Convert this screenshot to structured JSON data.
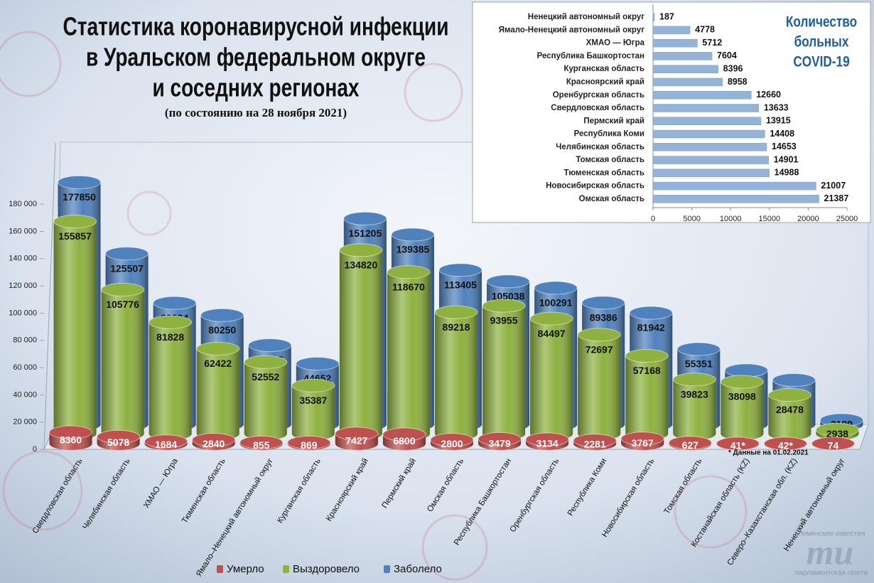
{
  "chart_data": [
    {
      "type": "bar",
      "style": "3d-cylinder",
      "title": [
        "Статистика коронавирусной инфекции",
        "в Уральском федеральном округе",
        "и соседних регионах"
      ],
      "subtitle": "(по состоянию на 28 ноября 2021)",
      "categories": [
        "Свердловская область",
        "Челябинская область",
        "ХМАО — Югра",
        "Тюменская область",
        "Ямало–Ненецкий автономный округ",
        "Курганская область",
        "Красноярский край",
        "Пермский край",
        "Омская область",
        "Республика Башкортостан",
        "Оренбургская область",
        "Республика Коми",
        "Новосибирская область",
        "Томская область",
        "Костанайская область (KZ)",
        "Северо–Казахстанская обл. (KZ)",
        "Ненецкий автономный округ"
      ],
      "series": [
        {
          "name": "Умерло",
          "color": "#c0504d",
          "values": [
            8360,
            5078,
            1684,
            2840,
            855,
            869,
            7427,
            6800,
            2800,
            3479,
            3134,
            2281,
            3767,
            627,
            41,
            42,
            74
          ],
          "value_labels": [
            "8360",
            "5078",
            "1684",
            "2840",
            "855",
            "869",
            "7427",
            "6800",
            "2800",
            "3479",
            "3134",
            "2281",
            "3767",
            "627",
            "41*",
            "42*",
            "74"
          ]
        },
        {
          "name": "Выздоровело",
          "color": "#8eb13f",
          "values": [
            155857,
            105776,
            81828,
            62422,
            52552,
            35387,
            134820,
            118670,
            89218,
            93955,
            84497,
            72697,
            57168,
            39823,
            38098,
            28478,
            2938
          ]
        },
        {
          "name": "Заболело",
          "color": "#4f81bd",
          "values": [
            177850,
            125507,
            89224,
            80250,
            58185,
            44652,
            151205,
            139385,
            113405,
            105038,
            100291,
            89386,
            81942,
            55351,
            39748,
            32645,
            3199
          ]
        }
      ],
      "ylim": [
        0,
        225000
      ],
      "yticks": [
        0,
        {
          "value": 20000,
          "label": "20 000"
        },
        {
          "value": 40000,
          "label": "40 000"
        },
        {
          "value": 60000,
          "label": "60 000"
        },
        {
          "value": 80000,
          "label": "80 000"
        },
        {
          "value": 100000,
          "label": "100 000"
        },
        {
          "value": 120000,
          "label": "120 000"
        },
        {
          "value": 140000,
          "label": "140 000"
        },
        {
          "value": 160000,
          "label": "160 000"
        },
        {
          "value": 180000,
          "label": "180 000"
        }
      ],
      "note": "* Данные на 01.02.2021",
      "legend": "bottom"
    },
    {
      "type": "barh",
      "title": [
        "Количество",
        "больных",
        "COVID-19"
      ],
      "categories": [
        "Ненецкий автономный округ",
        "Ямало-Ненецкий автономный округ",
        "ХМАО — Югра",
        "Республика Башкортостан",
        "Курганская область",
        "Красноярский край",
        "Оренбургская область",
        "Свердловская область",
        "Пермский край",
        "Республика Коми",
        "Челябинская область",
        "Томская область",
        "Тюменская область",
        "Новосибирская область",
        "Омская область"
      ],
      "values": [
        187,
        4778,
        5712,
        7604,
        8396,
        8958,
        12660,
        13633,
        13915,
        14408,
        14653,
        14901,
        14988,
        21007,
        21387
      ],
      "color": "#95b3d7",
      "xlim": [
        0,
        25000
      ],
      "xticks": [
        0,
        5000,
        10000,
        15000,
        20000,
        25000
      ]
    }
  ],
  "logo": {
    "top": "тюменские известия",
    "letters": "ти",
    "bottom": "парламентская газета"
  }
}
